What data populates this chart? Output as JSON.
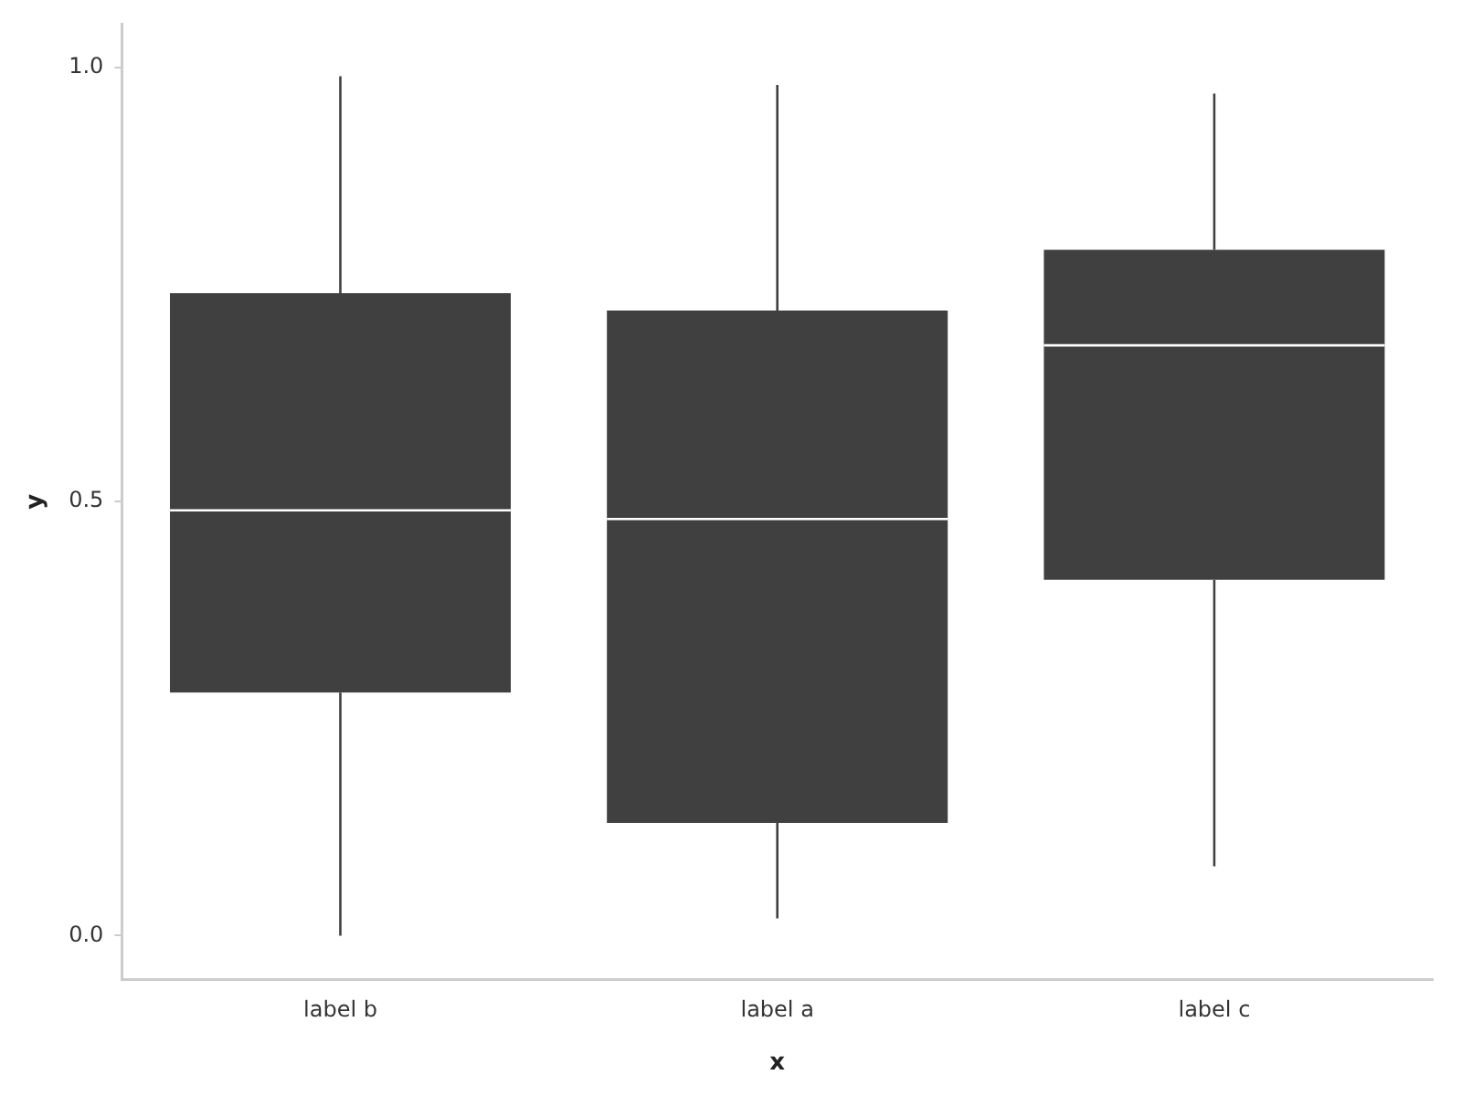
{
  "chart_data": {
    "type": "box",
    "xlabel": "x",
    "ylabel": "y",
    "categories": [
      "label b",
      "label a",
      "label c"
    ],
    "series": [
      {
        "color": "#404040",
        "boxes": [
          {
            "low": 0.0,
            "q1": 0.28,
            "median": 0.49,
            "q3": 0.74,
            "high": 0.99
          },
          {
            "low": 0.02,
            "q1": 0.13,
            "median": 0.48,
            "q3": 0.72,
            "high": 0.98
          },
          {
            "low": 0.08,
            "q1": 0.41,
            "median": 0.68,
            "q3": 0.79,
            "high": 0.97
          }
        ]
      }
    ],
    "ylim": [
      -0.05,
      1.05
    ],
    "yticks": [
      {
        "value": 0,
        "label": "0.0"
      },
      {
        "value": 0.5,
        "label": "0.5"
      },
      {
        "value": 1,
        "label": "1.0"
      }
    ],
    "grid": false,
    "legend": false
  }
}
